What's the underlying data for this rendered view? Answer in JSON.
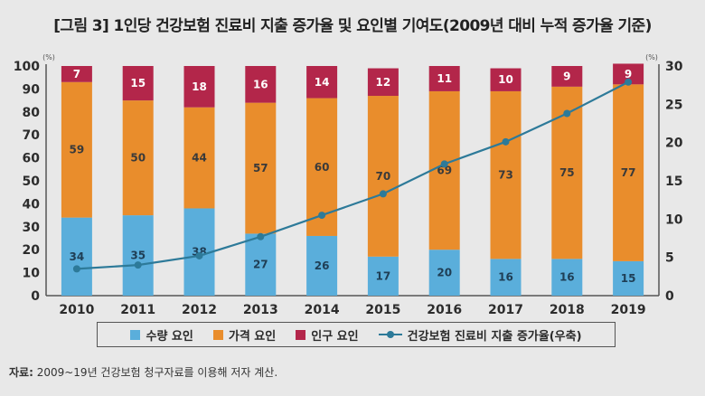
{
  "title": "[그림 3] 1인당 건강보험 진료비 지출 증가율 및 요인별 기여도(2009년 대비 누적 증가율 기준)",
  "source": {
    "label": "자료:",
    "text": " 2009~19년 건강보험 청구자료를 이용해 저자 계산."
  },
  "legend": {
    "items": [
      {
        "label": "수량 요인",
        "color": "#5aaedb",
        "kind": "box"
      },
      {
        "label": "가격 요인",
        "color": "#e98d2c",
        "kind": "box"
      },
      {
        "label": "인구 요인",
        "color": "#b3264a",
        "kind": "box"
      },
      {
        "label": "건강보험 진료비 지출 증가율(우축)",
        "color": "#2d7a99",
        "kind": "line"
      }
    ]
  },
  "chart_data": {
    "type": "bar",
    "stacked": true,
    "title": "[그림 3] 1인당 건강보험 진료비 지출 증가율 및 요인별 기여도(2009년 대비 누적 증가율 기준)",
    "categories": [
      "2010",
      "2011",
      "2012",
      "2013",
      "2014",
      "2015",
      "2016",
      "2017",
      "2018",
      "2019"
    ],
    "series": [
      {
        "name": "수량 요인",
        "type": "bar",
        "axis": "left",
        "color": "#5aaedb",
        "values": [
          34,
          35,
          38,
          27,
          26,
          17,
          20,
          16,
          16,
          15
        ]
      },
      {
        "name": "가격 요인",
        "type": "bar",
        "axis": "left",
        "color": "#e98d2c",
        "values": [
          59,
          50,
          44,
          57,
          60,
          70,
          69,
          73,
          75,
          77
        ]
      },
      {
        "name": "인구 요인",
        "type": "bar",
        "axis": "left",
        "color": "#b3264a",
        "values": [
          7,
          15,
          18,
          16,
          14,
          12,
          11,
          10,
          9,
          9
        ]
      },
      {
        "name": "건강보험 진료비 지출 증가율(우축)",
        "type": "line",
        "axis": "right",
        "color": "#2d7a99",
        "values": [
          3.5,
          4.0,
          5.2,
          7.7,
          10.5,
          13.3,
          17.2,
          20.1,
          23.8,
          27.9
        ]
      }
    ],
    "left_axis": {
      "label": "(%)",
      "range": [
        0,
        100
      ],
      "ticks": [
        0,
        10,
        20,
        30,
        40,
        50,
        60,
        70,
        80,
        90,
        100
      ]
    },
    "right_axis": {
      "label": "(%)",
      "range": [
        0,
        30
      ],
      "ticks": [
        0,
        5,
        10,
        15,
        20,
        25,
        30
      ]
    },
    "xlabel": "",
    "grid": false,
    "legend_position": "bottom"
  }
}
